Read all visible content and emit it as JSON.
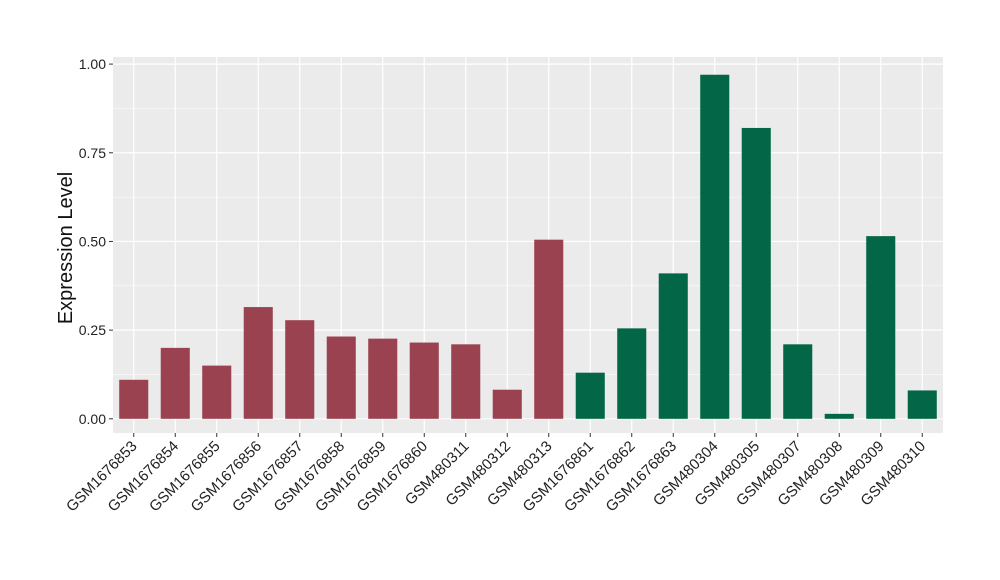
{
  "chart_data": {
    "type": "bar",
    "title": "",
    "xlabel": "",
    "ylabel": "Expression Level",
    "ylim": [
      -0.04,
      1.02
    ],
    "y_ticks": [
      0.0,
      0.25,
      0.5,
      0.75,
      1.0
    ],
    "y_tick_labels": [
      "0.00",
      "0.25",
      "0.50",
      "0.75",
      "1.00"
    ],
    "grid": true,
    "legend": "none",
    "colors": {
      "panel_background": "#ebebeb",
      "grid_major": "#ffffff",
      "group_1": "#9b4250",
      "group_2": "#036647"
    },
    "categories": [
      "GSM1676853",
      "GSM1676854",
      "GSM1676855",
      "GSM1676856",
      "GSM1676857",
      "GSM1676858",
      "GSM1676859",
      "GSM1676860",
      "GSM480311",
      "GSM480312",
      "GSM480313",
      "GSM1676861",
      "GSM1676862",
      "GSM1676863",
      "GSM480304",
      "GSM480305",
      "GSM480307",
      "GSM480308",
      "GSM480309",
      "GSM480310"
    ],
    "values": [
      0.11,
      0.2,
      0.15,
      0.315,
      0.278,
      0.232,
      0.226,
      0.215,
      0.21,
      0.082,
      0.505,
      0.13,
      0.255,
      0.41,
      0.97,
      0.82,
      0.21,
      0.014,
      0.515,
      0.08
    ],
    "bar_groups": [
      1,
      1,
      1,
      1,
      1,
      1,
      1,
      1,
      1,
      1,
      1,
      2,
      2,
      2,
      2,
      2,
      2,
      2,
      2,
      2
    ]
  }
}
